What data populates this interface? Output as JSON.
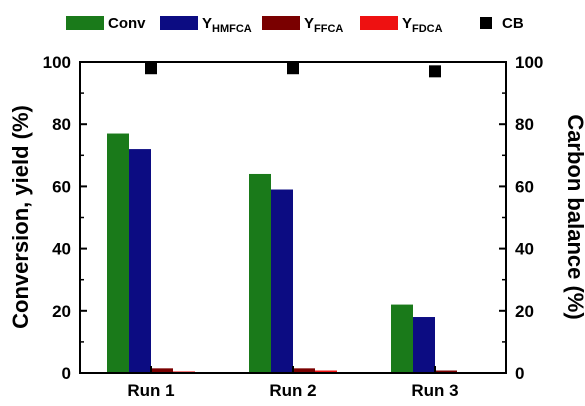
{
  "chart_data": {
    "type": "bar",
    "categories": [
      "Run 1",
      "Run 2",
      "Run 3"
    ],
    "series": [
      {
        "name": "Conv",
        "values": [
          77,
          64,
          22
        ],
        "color": "#1a7a1a",
        "axis": "left"
      },
      {
        "name": "Y",
        "subscript": "HMFCA",
        "values": [
          72,
          59,
          18
        ],
        "color": "#0c0c82",
        "axis": "left"
      },
      {
        "name": "Y",
        "subscript": "FFCA",
        "values": [
          1.5,
          1.5,
          0.8
        ],
        "color": "#7a0000",
        "axis": "left"
      },
      {
        "name": "Y",
        "subscript": "FDCA",
        "values": [
          0.5,
          0.8,
          0.3
        ],
        "color": "#ee1111",
        "axis": "left"
      },
      {
        "name": "CB",
        "values": [
          98,
          98,
          97
        ],
        "color": "#000000",
        "axis": "right",
        "mark": "square"
      }
    ],
    "ylabel": "Conversion, yield (%)",
    "ylabel_right": "Carbon balance (%)",
    "ylim": [
      0,
      100
    ],
    "ylim_right": [
      0,
      100
    ],
    "yticks": [
      "0",
      "20",
      "40",
      "60",
      "80",
      "100"
    ],
    "yticks_right": [
      "0",
      "20",
      "40",
      "60",
      "80",
      "100"
    ],
    "legend_position": "top"
  }
}
